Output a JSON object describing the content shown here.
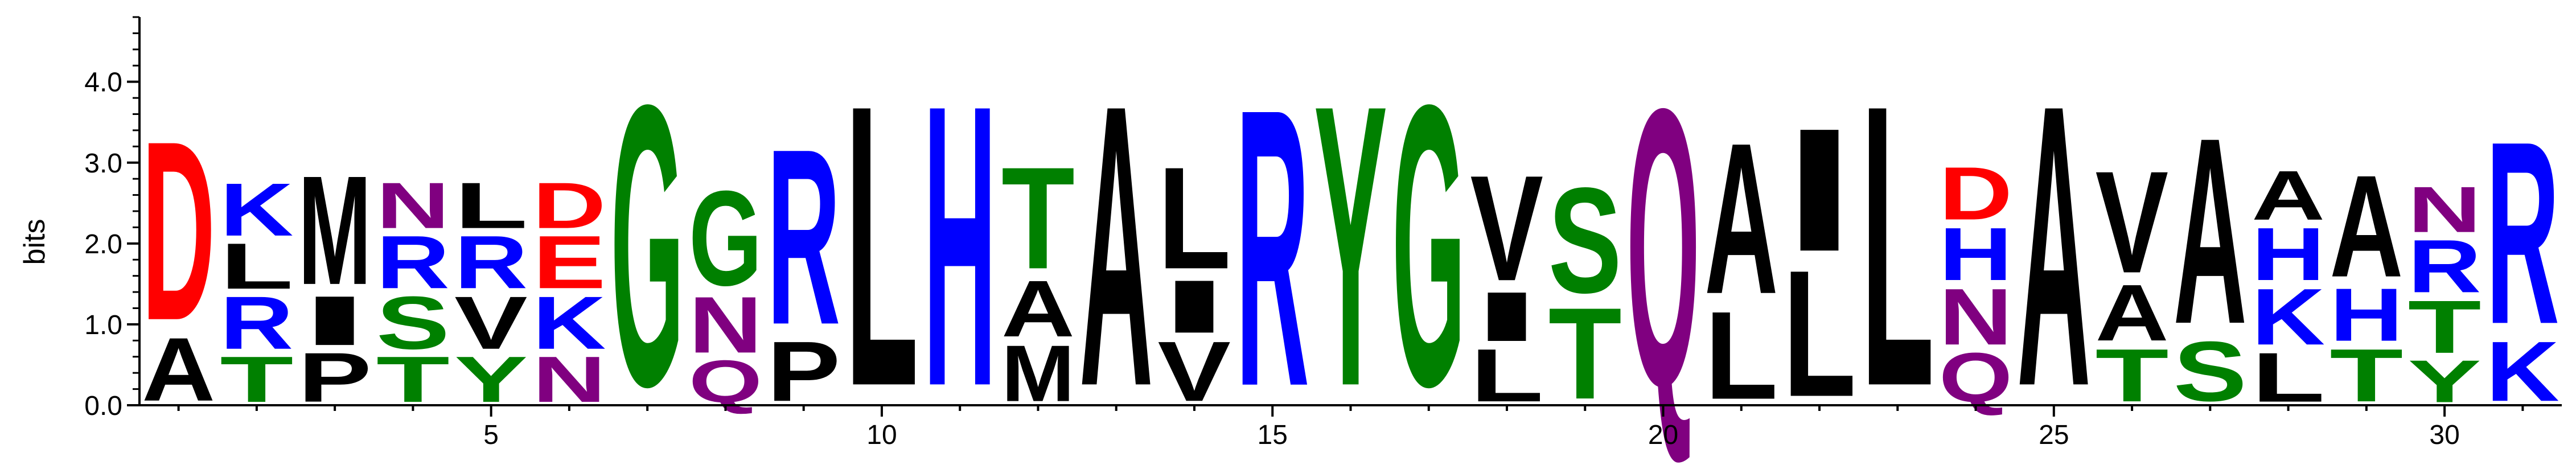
{
  "chart_data": {
    "type": "sequence-logo",
    "title": "",
    "xlabel": "",
    "ylabel": "bits",
    "xlim": [
      0.5,
      31.5
    ],
    "ylim": [
      0,
      4.8
    ],
    "x_ticks": [
      5,
      10,
      15,
      20,
      25,
      30
    ],
    "x_tick_labels": [
      "5",
      "10",
      "15",
      "20",
      "25",
      "30"
    ],
    "y_ticks": [
      0,
      1,
      2,
      3,
      4
    ],
    "y_tick_labels": [
      "0.0",
      "1.0",
      "2.0",
      "3.0",
      "4.0"
    ],
    "colors": {
      "D": "#ff0000",
      "E": "#ff0000",
      "K": "#0000ff",
      "R": "#0000ff",
      "H": "#0000ff",
      "G": "#008000",
      "S": "#008000",
      "T": "#008000",
      "Y": "#008000",
      "N": "#800080",
      "Q": "#800080",
      "A": "#000000",
      "L": "#000000",
      "M": "#000000",
      "P": "#000000",
      "I": "#000000",
      "V": "#000000"
    },
    "positions": [
      {
        "position": 1,
        "letters": [
          {
            "letter": "A",
            "height": 0.9
          },
          {
            "letter": "D",
            "height": 2.55
          }
        ]
      },
      {
        "position": 2,
        "letters": [
          {
            "letter": "T",
            "height": 0.65
          },
          {
            "letter": "R",
            "height": 0.75
          },
          {
            "letter": "L",
            "height": 0.65
          },
          {
            "letter": "K",
            "height": 0.75
          }
        ]
      },
      {
        "position": 3,
        "letters": [
          {
            "letter": "P",
            "height": 0.7
          },
          {
            "letter": "I",
            "height": 0.7
          },
          {
            "letter": "M",
            "height": 1.55
          }
        ]
      },
      {
        "position": 4,
        "letters": [
          {
            "letter": "T",
            "height": 0.65
          },
          {
            "letter": "S",
            "height": 0.75
          },
          {
            "letter": "R",
            "height": 0.75
          },
          {
            "letter": "N",
            "height": 0.65
          }
        ]
      },
      {
        "position": 5,
        "letters": [
          {
            "letter": "Y",
            "height": 0.65
          },
          {
            "letter": "V",
            "height": 0.75
          },
          {
            "letter": "R",
            "height": 0.75
          },
          {
            "letter": "L",
            "height": 0.65
          }
        ]
      },
      {
        "position": 6,
        "letters": [
          {
            "letter": "N",
            "height": 0.65
          },
          {
            "letter": "K",
            "height": 0.75
          },
          {
            "letter": "E",
            "height": 0.75
          },
          {
            "letter": "D",
            "height": 0.65
          }
        ]
      },
      {
        "position": 7,
        "letters": [
          {
            "letter": "G",
            "height": 4.0
          }
        ]
      },
      {
        "position": 8,
        "letters": [
          {
            "letter": "Q",
            "height": 0.6
          },
          {
            "letter": "N",
            "height": 0.8
          },
          {
            "letter": "G",
            "height": 1.35
          }
        ]
      },
      {
        "position": 9,
        "letters": [
          {
            "letter": "P",
            "height": 0.85
          },
          {
            "letter": "R",
            "height": 2.5
          }
        ]
      },
      {
        "position": 10,
        "letters": [
          {
            "letter": "L",
            "height": 4.0
          }
        ]
      },
      {
        "position": 11,
        "letters": [
          {
            "letter": "H",
            "height": 4.0
          }
        ]
      },
      {
        "position": 12,
        "letters": [
          {
            "letter": "M",
            "height": 0.8
          },
          {
            "letter": "A",
            "height": 0.8
          },
          {
            "letter": "T",
            "height": 1.45
          }
        ]
      },
      {
        "position": 13,
        "letters": [
          {
            "letter": "A",
            "height": 4.0
          }
        ]
      },
      {
        "position": 14,
        "letters": [
          {
            "letter": "V",
            "height": 0.85
          },
          {
            "letter": "I",
            "height": 0.75
          },
          {
            "letter": "L",
            "height": 1.45
          }
        ]
      },
      {
        "position": 15,
        "letters": [
          {
            "letter": "R",
            "height": 3.95
          }
        ]
      },
      {
        "position": 16,
        "letters": [
          {
            "letter": "Y",
            "height": 4.0
          }
        ]
      },
      {
        "position": 17,
        "letters": [
          {
            "letter": "G",
            "height": 4.0
          }
        ]
      },
      {
        "position": 18,
        "letters": [
          {
            "letter": "L",
            "height": 0.75
          },
          {
            "letter": "I",
            "height": 0.7
          },
          {
            "letter": "V",
            "height": 1.5
          }
        ]
      },
      {
        "position": 19,
        "letters": [
          {
            "letter": "T",
            "height": 1.3
          },
          {
            "letter": "S",
            "height": 1.5
          }
        ]
      },
      {
        "position": 20,
        "letters": [
          {
            "letter": "Q",
            "height": 3.95
          }
        ]
      },
      {
        "position": 21,
        "letters": [
          {
            "letter": "L",
            "height": 1.25
          },
          {
            "letter": "A",
            "height": 2.15
          }
        ]
      },
      {
        "position": 22,
        "letters": [
          {
            "letter": "L",
            "height": 1.8
          },
          {
            "letter": "I",
            "height": 1.75
          }
        ]
      },
      {
        "position": 23,
        "letters": [
          {
            "letter": "L",
            "height": 4.0
          }
        ]
      },
      {
        "position": 24,
        "letters": [
          {
            "letter": "Q",
            "height": 0.7
          },
          {
            "letter": "N",
            "height": 0.8
          },
          {
            "letter": "H",
            "height": 0.75
          },
          {
            "letter": "D",
            "height": 0.75
          }
        ]
      },
      {
        "position": 25,
        "letters": [
          {
            "letter": "A",
            "height": 4.0
          }
        ]
      },
      {
        "position": 26,
        "letters": [
          {
            "letter": "T",
            "height": 0.75
          },
          {
            "letter": "A",
            "height": 0.8
          },
          {
            "letter": "V",
            "height": 1.45
          }
        ]
      },
      {
        "position": 27,
        "letters": [
          {
            "letter": "S",
            "height": 0.85
          },
          {
            "letter": "A",
            "height": 2.65
          }
        ]
      },
      {
        "position": 28,
        "letters": [
          {
            "letter": "L",
            "height": 0.7
          },
          {
            "letter": "K",
            "height": 0.8
          },
          {
            "letter": "H",
            "height": 0.75
          },
          {
            "letter": "A",
            "height": 0.7
          }
        ]
      },
      {
        "position": 29,
        "letters": [
          {
            "letter": "T",
            "height": 0.75
          },
          {
            "letter": "H",
            "height": 0.75
          },
          {
            "letter": "A",
            "height": 1.45
          }
        ]
      },
      {
        "position": 30,
        "letters": [
          {
            "letter": "Y",
            "height": 0.6
          },
          {
            "letter": "T",
            "height": 0.75
          },
          {
            "letter": "R",
            "height": 0.75
          },
          {
            "letter": "N",
            "height": 0.65
          }
        ]
      },
      {
        "position": 31,
        "letters": [
          {
            "letter": "K",
            "height": 0.85
          },
          {
            "letter": "R",
            "height": 2.6
          }
        ]
      }
    ]
  }
}
